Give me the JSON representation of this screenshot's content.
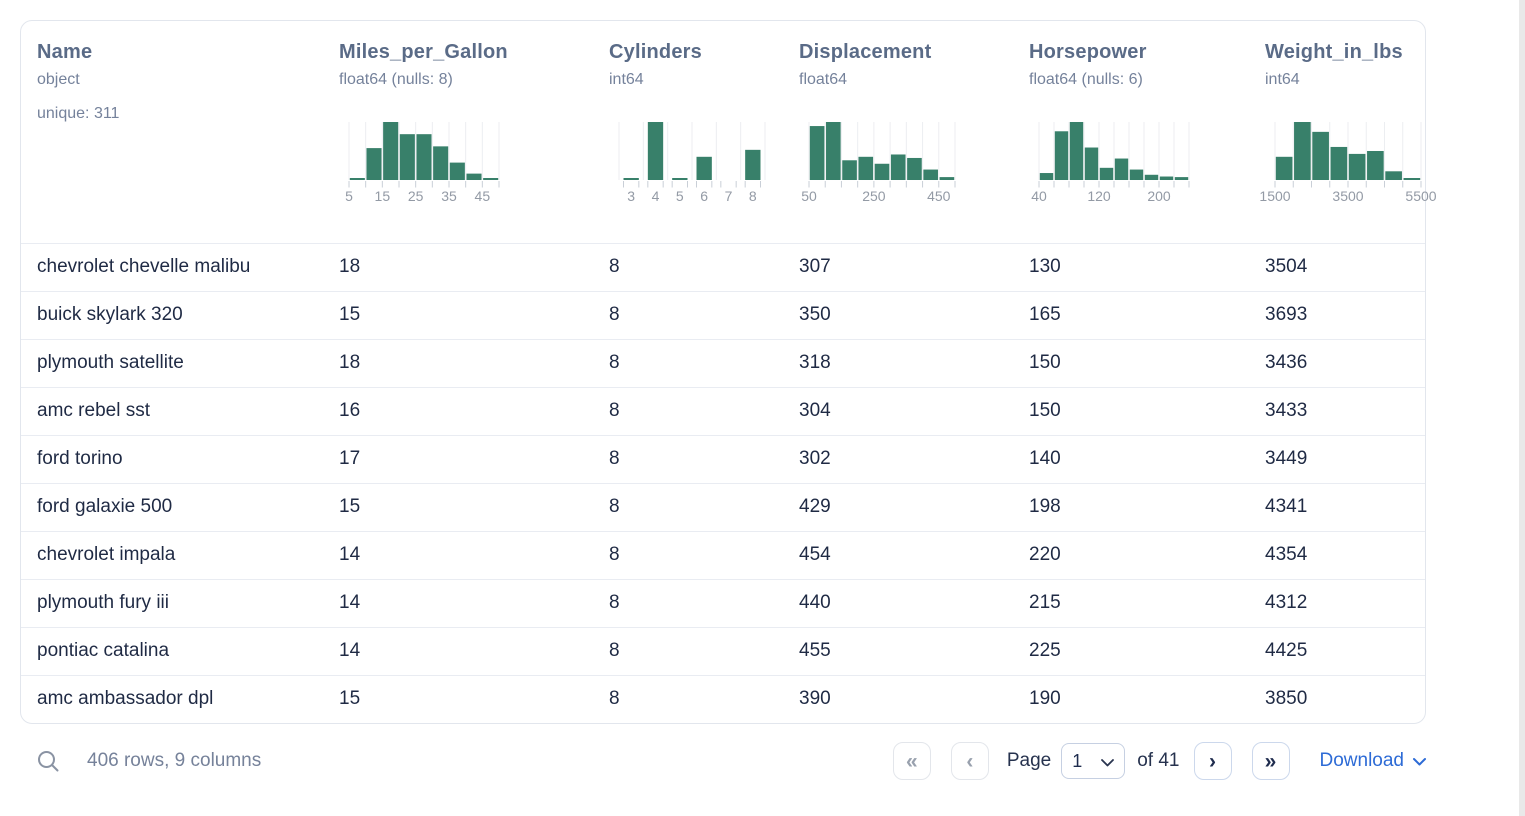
{
  "table": {
    "columns": [
      {
        "name": "Name",
        "type": "object",
        "extra": "unique: 311"
      },
      {
        "name": "Miles_per_Gallon",
        "type": "float64 (nulls: 8)",
        "histogram": {
          "chart_type": "histogram",
          "type": "linear",
          "width": 150,
          "bar_heights": [
            3,
            55,
            100,
            79,
            79,
            58,
            30,
            11,
            3
          ],
          "ticks": [
            {
              "label": "5",
              "pos": 0
            },
            {
              "label": "15",
              "pos": 2
            },
            {
              "label": "25",
              "pos": 4
            },
            {
              "label": "35",
              "pos": 6
            },
            {
              "label": "45",
              "pos": 8
            }
          ]
        }
      },
      {
        "name": "Cylinders",
        "type": "int64",
        "histogram": {
          "chart_type": "histogram",
          "type": "band",
          "width": 146,
          "bar_heights": [
            3,
            100,
            3,
            40,
            0,
            52
          ],
          "ticks": [
            {
              "label": "3",
              "pos": 0.5
            },
            {
              "label": "4",
              "pos": 1.5
            },
            {
              "label": "5",
              "pos": 2.5
            },
            {
              "label": "6",
              "pos": 3.5
            },
            {
              "label": "7",
              "pos": 4.5
            },
            {
              "label": "8",
              "pos": 5.5
            }
          ]
        }
      },
      {
        "name": "Displacement",
        "type": "float64",
        "histogram": {
          "chart_type": "histogram",
          "type": "linear",
          "width": 146,
          "bar_heights": [
            93,
            100,
            34,
            40,
            28,
            44,
            38,
            18,
            5
          ],
          "ticks": [
            {
              "label": "50",
              "pos": 0
            },
            {
              "label": "250",
              "pos": 4
            },
            {
              "label": "450",
              "pos": 8
            }
          ]
        }
      },
      {
        "name": "Horsepower",
        "type": "float64 (nulls: 6)",
        "histogram": {
          "chart_type": "histogram",
          "type": "linear",
          "width": 150,
          "bar_heights": [
            12,
            84,
            100,
            56,
            21,
            37,
            18,
            9,
            6,
            5
          ],
          "ticks": [
            {
              "label": "40",
              "pos": 0
            },
            {
              "label": "120",
              "pos": 4
            },
            {
              "label": "200",
              "pos": 8
            }
          ]
        }
      },
      {
        "name": "Weight_in_lbs",
        "type": "int64",
        "histogram": {
          "chart_type": "histogram",
          "type": "linear",
          "width": 146,
          "bar_heights": [
            40,
            100,
            83,
            57,
            45,
            50,
            15,
            3
          ],
          "ticks": [
            {
              "label": "1500",
              "pos": 0
            },
            {
              "label": "3500",
              "pos": 4
            },
            {
              "label": "5500",
              "pos": 8
            }
          ]
        }
      }
    ],
    "rows": [
      [
        "chevrolet chevelle malibu",
        "18",
        "8",
        "307",
        "130",
        "3504"
      ],
      [
        "buick skylark 320",
        "15",
        "8",
        "350",
        "165",
        "3693"
      ],
      [
        "plymouth satellite",
        "18",
        "8",
        "318",
        "150",
        "3436"
      ],
      [
        "amc rebel sst",
        "16",
        "8",
        "304",
        "150",
        "3433"
      ],
      [
        "ford torino",
        "17",
        "8",
        "302",
        "140",
        "3449"
      ],
      [
        "ford galaxie 500",
        "15",
        "8",
        "429",
        "198",
        "4341"
      ],
      [
        "chevrolet impala",
        "14",
        "8",
        "454",
        "220",
        "4354"
      ],
      [
        "plymouth fury iii",
        "14",
        "8",
        "440",
        "215",
        "4312"
      ],
      [
        "pontiac catalina",
        "14",
        "8",
        "455",
        "225",
        "4425"
      ],
      [
        "amc ambassador dpl",
        "15",
        "8",
        "390",
        "190",
        "3850"
      ]
    ]
  },
  "footer": {
    "row_count_label": "406 rows, 9 columns",
    "page_label": "Page",
    "page_value": "1",
    "of_label": "of 41",
    "download_label": "Download"
  },
  "icons": {
    "search": "magnifier",
    "first_page": "«",
    "prev_page": "‹",
    "next_page": "›",
    "last_page": "»",
    "page_select_chevron": "chevron-down",
    "download_chevron": "chevron-down"
  },
  "colors": {
    "histogram_bar": "#38806a",
    "header_text": "#5a6b87",
    "cell_text": "#1f2a44",
    "download_blue": "#2d6bd6"
  }
}
